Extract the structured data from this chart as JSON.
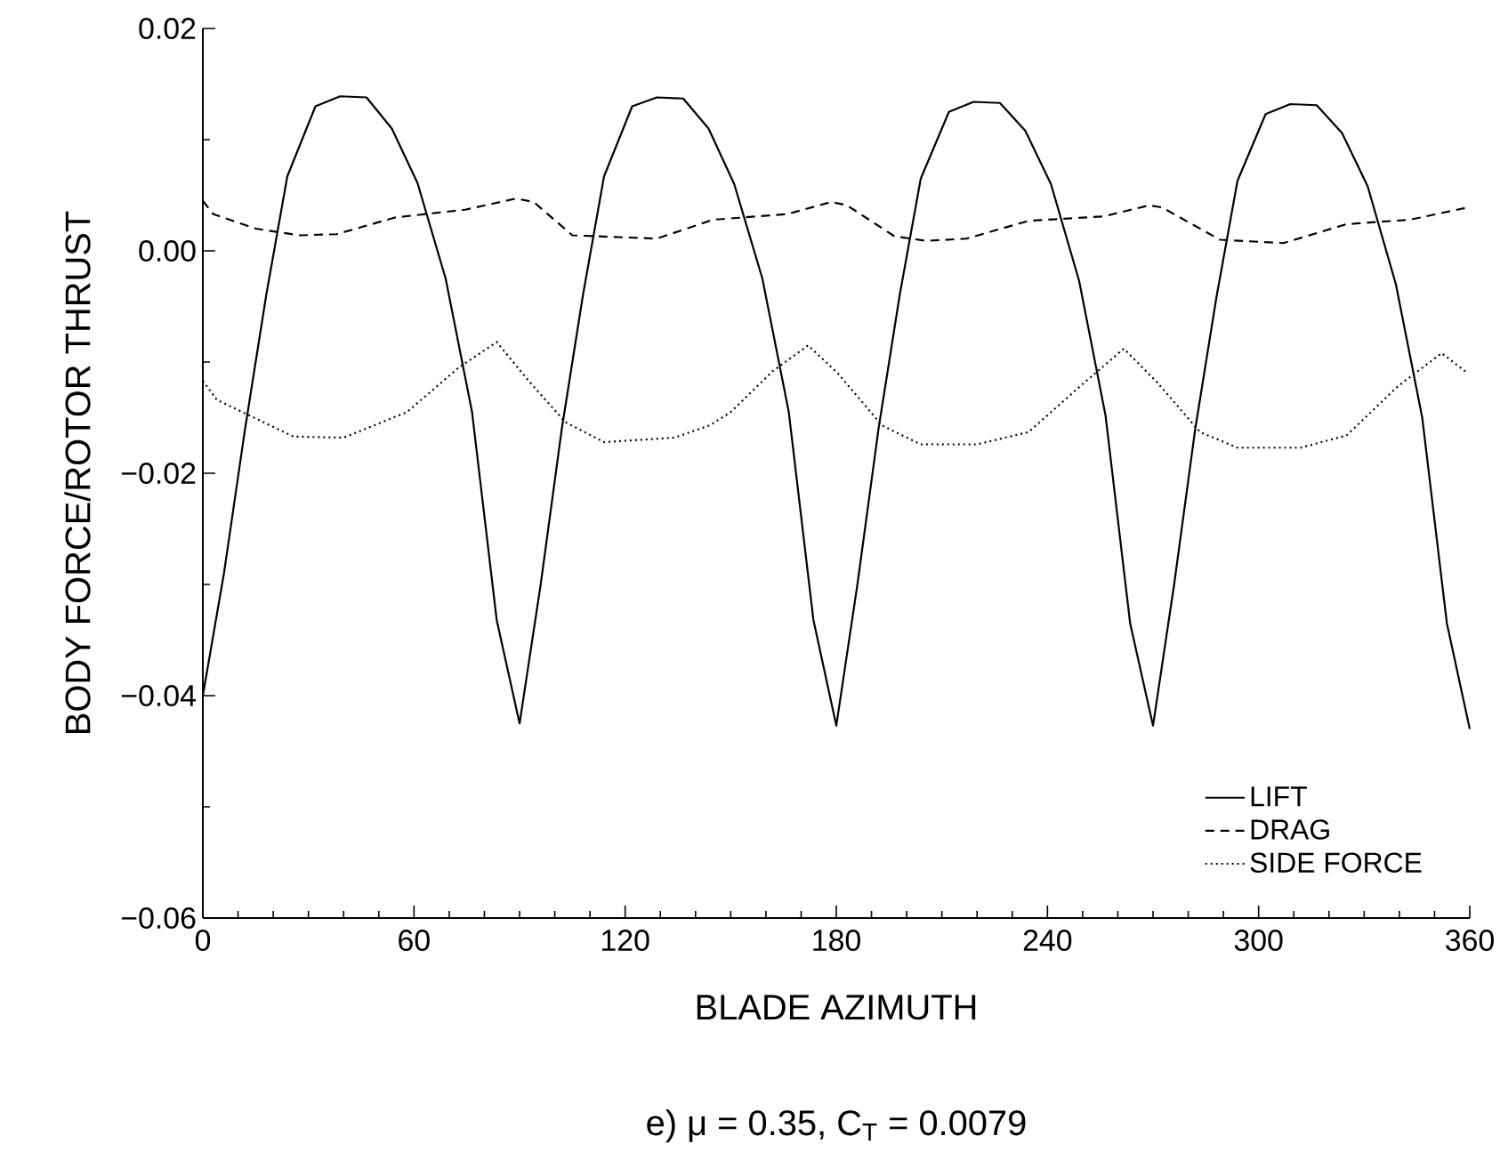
{
  "chart_data": {
    "type": "line",
    "xlabel": "BLADE AZIMUTH",
    "ylabel": "BODY FORCE/ROTOR THRUST",
    "annotations": [
      "e) μ = 0.35, C$_{T}$ = 0.0079"
    ],
    "xlim": [
      0,
      360
    ],
    "ylim": [
      -0.06,
      0.02
    ],
    "xticks": [
      0,
      {
        "value": 10,
        "label": null
      },
      {
        "value": 20,
        "label": null
      },
      {
        "value": 30,
        "label": null
      },
      {
        "value": 40,
        "label": null
      },
      {
        "value": 50,
        "label": null
      },
      60,
      {
        "value": 70,
        "label": null
      },
      {
        "value": 80,
        "label": null
      },
      {
        "value": 90,
        "label": null
      },
      {
        "value": 100,
        "label": null
      },
      {
        "value": 110,
        "label": null
      },
      120,
      {
        "value": 130,
        "label": null
      },
      {
        "value": 140,
        "label": null
      },
      {
        "value": 150,
        "label": null
      },
      {
        "value": 160,
        "label": null
      },
      {
        "value": 170,
        "label": null
      },
      180,
      {
        "value": 190,
        "label": null
      },
      {
        "value": 200,
        "label": null
      },
      {
        "value": 210,
        "label": null
      },
      {
        "value": 220,
        "label": null
      },
      {
        "value": 230,
        "label": null
      },
      240,
      {
        "value": 250,
        "label": null
      },
      {
        "value": 260,
        "label": null
      },
      {
        "value": 270,
        "label": null
      },
      {
        "value": 280,
        "label": null
      },
      {
        "value": 290,
        "label": null
      },
      300,
      {
        "value": 310,
        "label": null
      },
      {
        "value": 320,
        "label": null
      },
      {
        "value": 330,
        "label": null
      },
      {
        "value": 340,
        "label": null
      },
      {
        "value": 350,
        "label": null
      },
      360
    ],
    "yticks": [
      {
        "value": -0.06,
        "label": "−0.06"
      },
      {
        "value": -0.05,
        "label": null
      },
      {
        "value": -0.04,
        "label": "−0.04"
      },
      {
        "value": -0.03,
        "label": null
      },
      {
        "value": -0.02,
        "label": "−0.02"
      },
      {
        "value": -0.01,
        "label": null
      },
      {
        "value": 0,
        "label": "0.00"
      },
      {
        "value": 0.01,
        "label": null
      },
      {
        "value": 0.02,
        "label": "0.02"
      }
    ],
    "grid": false,
    "legend": "bottom right",
    "series": [
      {
        "name": "LIFT",
        "color": "#000000",
        "line_style": "solid",
        "x": [
          0,
          6,
          12,
          18,
          24,
          32,
          39,
          46.5,
          53.7,
          61,
          69,
          76.5,
          83.5,
          90,
          96,
          102,
          108,
          114,
          122,
          129,
          136.5,
          143.7,
          151,
          159,
          166.5,
          173.5,
          180,
          186,
          192,
          198,
          204,
          212,
          219,
          226.5,
          233.7,
          241,
          249,
          256.5,
          263.5,
          270,
          276,
          282,
          288,
          294,
          302,
          309,
          316.5,
          323.7,
          331,
          339,
          346.5,
          353.5,
          360
        ],
        "values": [
          -0.04,
          -0.029,
          -0.016,
          -0.004,
          0.0067,
          0.013,
          0.0139,
          0.0138,
          0.011,
          0.0061,
          -0.0025,
          -0.0145,
          -0.0332,
          -0.0425,
          -0.03,
          -0.016,
          -0.004,
          0.0067,
          0.013,
          0.0138,
          0.0137,
          0.011,
          0.006,
          -0.0025,
          -0.0145,
          -0.0332,
          -0.0427,
          -0.03,
          -0.016,
          -0.004,
          0.0065,
          0.0125,
          0.0134,
          0.0133,
          0.0108,
          0.006,
          -0.0027,
          -0.0148,
          -0.0335,
          -0.0427,
          -0.03,
          -0.016,
          -0.0042,
          0.0063,
          0.0123,
          0.0132,
          0.0131,
          0.0106,
          0.0058,
          -0.003,
          -0.015,
          -0.0335,
          -0.043
        ]
      },
      {
        "name": "DRAG",
        "color": "#000000",
        "line_style": "dashed",
        "x": [
          0,
          3,
          15,
          27.5,
          38,
          54.6,
          74.5,
          89,
          94,
          105,
          129,
          145,
          166,
          178.6,
          183,
          196.6,
          205.7,
          217,
          234.6,
          256,
          269,
          272.6,
          289,
          307,
          325,
          343,
          359.4
        ],
        "values": [
          0.0045,
          0.0033,
          0.002,
          0.0014,
          0.0015,
          0.003,
          0.0037,
          0.0047,
          0.0044,
          0.0014,
          0.0011,
          0.0028,
          0.0033,
          0.0044,
          0.0041,
          0.0013,
          0.0009,
          0.0011,
          0.0027,
          0.0031,
          0.0041,
          0.0039,
          0.001,
          0.0007,
          0.0024,
          0.0028,
          0.0039
        ]
      },
      {
        "name": "SIDE FORCE",
        "color": "#000000",
        "line_style": "dotted",
        "x": [
          0,
          4,
          25.7,
          40,
          58,
          72.7,
          83.5,
          92.6,
          103,
          114,
          134,
          144,
          150,
          162,
          172,
          180.4,
          193,
          204,
          220,
          234.6,
          251,
          261.7,
          270.8,
          283.4,
          294,
          312,
          325,
          339.5,
          352,
          359.4
        ],
        "values": [
          -0.0117,
          -0.0134,
          -0.0167,
          -0.0168,
          -0.0145,
          -0.0105,
          -0.0082,
          -0.0117,
          -0.0154,
          -0.0172,
          -0.0168,
          -0.0157,
          -0.0145,
          -0.0108,
          -0.0085,
          -0.011,
          -0.0157,
          -0.0174,
          -0.0174,
          -0.0163,
          -0.0117,
          -0.0088,
          -0.0117,
          -0.0163,
          -0.0177,
          -0.0177,
          -0.0166,
          -0.0122,
          -0.0092,
          -0.011
        ]
      }
    ]
  }
}
